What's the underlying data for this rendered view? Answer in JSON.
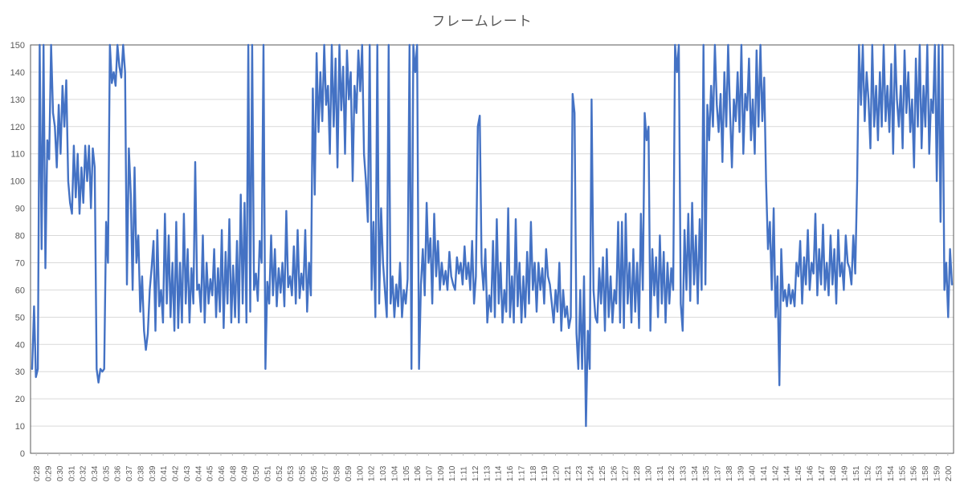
{
  "chart_data": {
    "type": "line",
    "title": "フレームレート",
    "xlabel": "",
    "ylabel": "",
    "ylim": [
      0,
      150
    ],
    "yticks": [
      0,
      10,
      20,
      30,
      40,
      50,
      60,
      70,
      80,
      90,
      100,
      110,
      120,
      130,
      140,
      150
    ],
    "grid": true,
    "legend": "none",
    "color": "#4472C4",
    "x_tick_labels": [
      "0:28",
      "0:29",
      "0:30",
      "0:31",
      "0:32",
      "0:34",
      "0:35",
      "0:36",
      "0:37",
      "0:38",
      "0:39",
      "0:41",
      "0:42",
      "0:43",
      "0:44",
      "0:45",
      "0:46",
      "0:48",
      "0:49",
      "0:50",
      "0:51",
      "0:52",
      "0:53",
      "0:55",
      "0:56",
      "0:57",
      "0:58",
      "0:59",
      "1:00",
      "1:02",
      "1:03",
      "1:04",
      "1:05",
      "1:06",
      "1:07",
      "1:09",
      "1:10",
      "1:11",
      "1:12",
      "1:13",
      "1:14",
      "1:16",
      "1:17",
      "1:18",
      "1:19",
      "1:20",
      "1:21",
      "1:23",
      "1:24",
      "1:25",
      "1:26",
      "1:27",
      "1:28",
      "1:30",
      "1:31",
      "1:32",
      "1:33",
      "1:34",
      "1:35",
      "1:37",
      "1:38",
      "1:39",
      "1:40",
      "1:41",
      "1:42",
      "1:44",
      "1:45",
      "1:46",
      "1:47",
      "1:48",
      "1:49",
      "1:51",
      "1:52",
      "1:53",
      "1:54",
      "1:55",
      "1:56",
      "1:58",
      "1:59",
      "2:00"
    ],
    "series": [
      {
        "values": [
          31,
          54,
          28,
          31,
          150,
          75,
          150,
          68,
          115,
          108,
          150,
          125,
          120,
          105,
          128,
          110,
          135,
          120,
          137,
          100,
          92,
          88,
          113,
          94,
          110,
          88,
          105,
          92,
          113,
          100,
          113,
          90,
          112,
          105,
          31,
          26,
          31,
          30,
          31,
          85,
          70,
          150,
          136,
          140,
          135,
          150,
          142,
          138,
          150,
          140,
          62,
          112,
          95,
          60,
          105,
          70,
          80,
          52,
          65,
          45,
          38,
          44,
          60,
          68,
          78,
          45,
          82,
          54,
          60,
          48,
          88,
          55,
          80,
          50,
          70,
          45,
          85,
          46,
          70,
          48,
          88,
          55,
          75,
          48,
          68,
          55,
          107,
          60,
          62,
          52,
          80,
          48,
          70,
          55,
          64,
          58,
          75,
          50,
          68,
          52,
          82,
          46,
          74,
          55,
          86,
          48,
          69,
          50,
          78,
          48,
          95,
          55,
          92,
          48,
          150,
          52,
          150,
          60,
          66,
          56,
          78,
          70,
          150,
          31,
          63,
          55,
          80,
          58,
          75,
          54,
          68,
          59,
          70,
          54,
          89,
          61,
          65,
          58,
          76,
          55,
          82,
          57,
          66,
          60,
          82,
          52,
          70,
          58,
          134,
          95,
          147,
          118,
          140,
          122,
          150,
          128,
          135,
          110,
          150,
          120,
          145,
          105,
          150,
          126,
          142,
          110,
          148,
          130,
          140,
          100,
          135,
          125,
          148,
          133,
          150,
          110,
          100,
          85,
          150,
          60,
          85,
          50,
          150,
          55,
          90,
          70,
          60,
          50,
          150,
          55,
          65,
          50,
          62,
          54,
          70,
          50,
          60,
          55,
          64,
          150,
          31,
          150,
          140,
          150,
          31,
          62,
          75,
          58,
          92,
          70,
          79,
          55,
          88,
          65,
          78,
          60,
          70,
          62,
          67,
          60,
          74,
          65,
          62,
          60,
          72,
          66,
          70,
          62,
          76,
          64,
          70,
          60,
          78,
          55,
          65,
          120,
          124,
          70,
          60,
          75,
          48,
          58,
          52,
          78,
          50,
          86,
          55,
          70,
          48,
          60,
          52,
          90,
          50,
          65,
          48,
          86,
          54,
          70,
          48,
          65,
          50,
          74,
          55,
          85,
          60,
          70,
          52,
          70,
          60,
          68,
          55,
          75,
          65,
          62,
          55,
          48,
          60,
          52,
          70,
          45,
          60,
          50,
          54,
          46,
          50,
          132,
          125,
          44,
          31,
          60,
          31,
          65,
          10,
          45,
          31,
          130,
          60,
          50,
          48,
          68,
          55,
          72,
          45,
          75,
          50,
          65,
          48,
          60,
          55,
          85,
          48,
          85,
          46,
          88,
          55,
          70,
          48,
          75,
          52,
          70,
          46,
          88,
          60,
          125,
          115,
          120,
          45,
          75,
          58,
          72,
          50,
          80,
          55,
          74,
          48,
          70,
          55,
          68,
          60,
          150,
          140,
          150,
          55,
          45,
          82,
          60,
          88,
          56,
          92,
          62,
          80,
          55,
          86,
          60,
          150,
          62,
          128,
          115,
          135,
          120,
          150,
          128,
          118,
          132,
          107,
          140,
          120,
          150,
          125,
          105,
          130,
          122,
          140,
          118,
          150,
          110,
          132,
          126,
          145,
          115,
          130,
          110,
          148,
          120,
          150,
          122,
          138,
          100,
          75,
          85,
          60,
          90,
          50,
          65,
          25,
          75,
          56,
          60,
          54,
          62,
          55,
          60,
          54,
          70,
          65,
          78,
          55,
          72,
          62,
          82,
          60,
          70,
          66,
          88,
          58,
          75,
          62,
          84,
          60,
          70,
          58,
          80,
          62,
          75,
          55,
          82,
          65,
          70,
          60,
          80,
          70,
          68,
          62,
          80,
          66,
          100,
          150,
          128,
          150,
          122,
          140,
          130,
          112,
          150,
          120,
          135,
          115,
          140,
          120,
          150,
          122,
          135,
          118,
          143,
          110,
          150,
          130,
          120,
          135,
          112,
          148,
          125,
          140,
          118,
          130,
          105,
          145,
          120,
          150,
          112,
          135,
          120,
          150,
          110,
          130,
          125,
          150,
          100,
          150,
          85,
          150,
          60,
          70,
          50,
          75,
          62
        ]
      }
    ]
  }
}
